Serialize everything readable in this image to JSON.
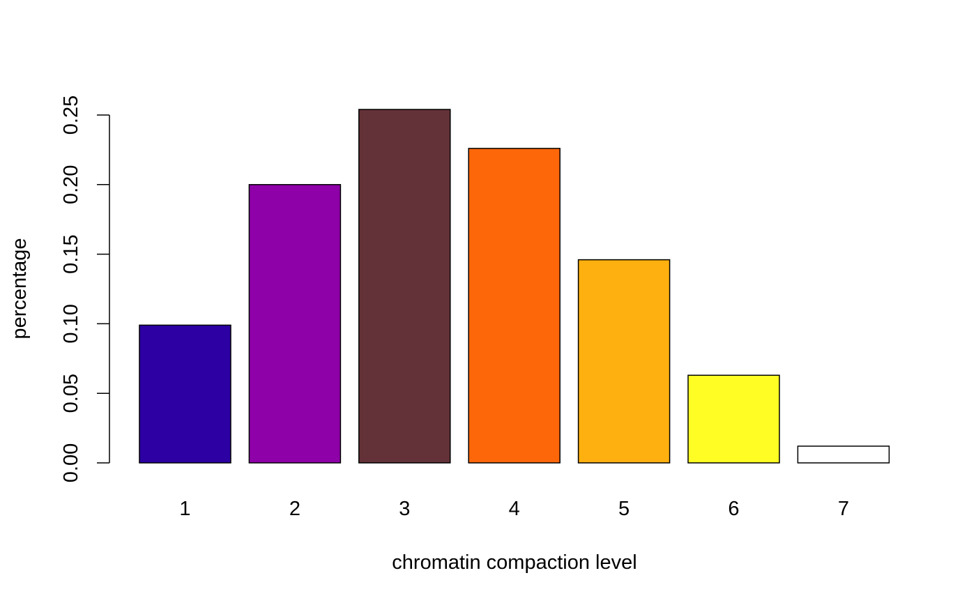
{
  "chart_data": {
    "type": "bar",
    "categories": [
      "1",
      "2",
      "3",
      "4",
      "5",
      "6",
      "7"
    ],
    "values": [
      0.099,
      0.2,
      0.254,
      0.226,
      0.146,
      0.063,
      0.012
    ],
    "colors": [
      "#2C00A2",
      "#8E00A8",
      "#633238",
      "#FD670A",
      "#FDB00F",
      "#FFFD24",
      "#FFFFFF"
    ],
    "xlabel": "chromatin compaction level",
    "ylabel": "percentage",
    "ylim": [
      0,
      0.25
    ],
    "yticks": [
      "0.00",
      "0.05",
      "0.10",
      "0.15",
      "0.20",
      "0.25"
    ],
    "grid": false,
    "legend": "none"
  }
}
